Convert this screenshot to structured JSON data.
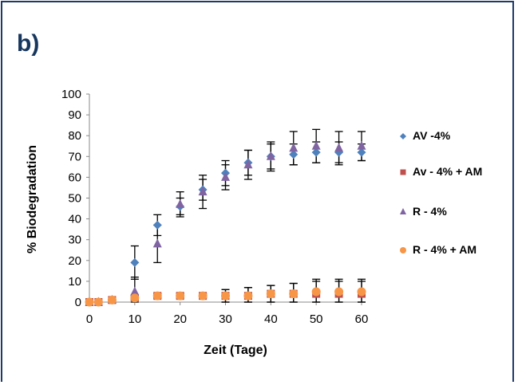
{
  "panel_label": "b)",
  "chart_data": {
    "type": "scatter",
    "xlabel": "Zeit (Tage)",
    "ylabel": "% Biodegradation",
    "xlim": [
      0,
      60
    ],
    "ylim": [
      0,
      100
    ],
    "xticks": [
      0,
      10,
      20,
      30,
      40,
      50,
      60
    ],
    "yticks": [
      0,
      10,
      20,
      30,
      40,
      50,
      60,
      70,
      80,
      90,
      100
    ],
    "legend_position": "right",
    "series": [
      {
        "name": "AV -4%",
        "marker": "diamond",
        "color": "#4f81bd",
        "x": [
          0,
          2,
          5,
          10,
          15,
          20,
          25,
          30,
          35,
          40,
          45,
          50,
          55,
          60
        ],
        "y": [
          0,
          0,
          1,
          19,
          37,
          46,
          54,
          62,
          67,
          70,
          71,
          72,
          72,
          72
        ],
        "err": [
          0,
          0,
          0,
          8,
          5,
          4,
          5,
          6,
          6,
          6,
          5,
          5,
          5,
          4
        ]
      },
      {
        "name": "Av - 4% + AM",
        "marker": "square",
        "color": "#c0504d",
        "x": [
          0,
          2,
          5,
          10,
          15,
          20,
          25,
          30,
          35,
          40,
          45,
          50,
          55,
          60
        ],
        "y": [
          0,
          0,
          1,
          2,
          3,
          3,
          3,
          3,
          3,
          4,
          4,
          4,
          4,
          4
        ],
        "err": [
          0,
          0,
          0,
          1,
          1,
          1,
          1,
          3,
          4,
          4,
          5,
          6,
          6,
          6
        ]
      },
      {
        "name": "R - 4%",
        "marker": "triangle",
        "color": "#8064a2",
        "x": [
          0,
          2,
          5,
          10,
          15,
          20,
          25,
          30,
          35,
          40,
          45,
          50,
          55,
          60
        ],
        "y": [
          0,
          0,
          1,
          5,
          28,
          47,
          53,
          60,
          66,
          70,
          74,
          75,
          74,
          75
        ],
        "err": [
          0,
          0,
          0,
          7,
          9,
          6,
          8,
          6,
          7,
          7,
          8,
          8,
          8,
          7
        ]
      },
      {
        "name": "R - 4% + AM",
        "marker": "circle",
        "color": "#f79646",
        "x": [
          0,
          2,
          5,
          10,
          15,
          20,
          25,
          30,
          35,
          40,
          45,
          50,
          55,
          60
        ],
        "y": [
          0,
          0,
          1,
          2,
          3,
          3,
          3,
          3,
          3,
          4,
          4,
          5,
          5,
          5
        ],
        "err": [
          0,
          0,
          0,
          1,
          1,
          1,
          1,
          3,
          4,
          4,
          5,
          6,
          6,
          6
        ]
      }
    ]
  }
}
